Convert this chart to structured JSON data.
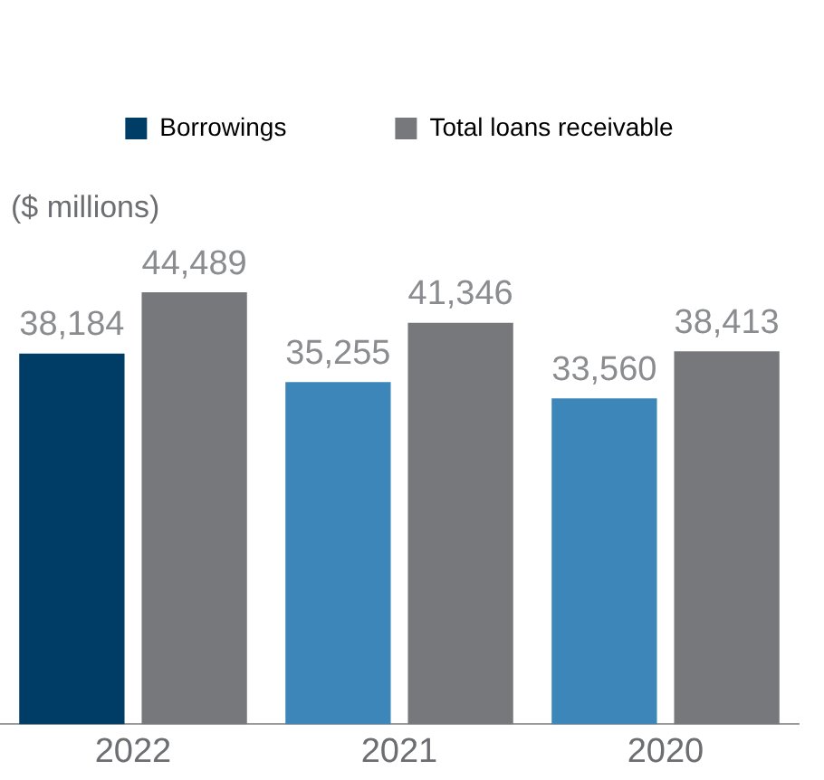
{
  "chart_data": {
    "type": "bar",
    "ylabel": "($ millions)",
    "categories": [
      "2022",
      "2021",
      "2020"
    ],
    "series": [
      {
        "name": "Borrowings",
        "colors": [
          "#003d66",
          "#3d86b9",
          "#3d86b9"
        ],
        "values": [
          38184,
          35255,
          33560
        ],
        "value_labels": [
          "38,184",
          "35,255",
          "33,560"
        ]
      },
      {
        "name": "Total loans receivable",
        "color": "#76787c",
        "values": [
          44489,
          41346,
          38413
        ],
        "value_labels": [
          "44,489",
          "41,346",
          "38,413"
        ]
      }
    ],
    "tick_labels": "x",
    "legend": "top"
  }
}
